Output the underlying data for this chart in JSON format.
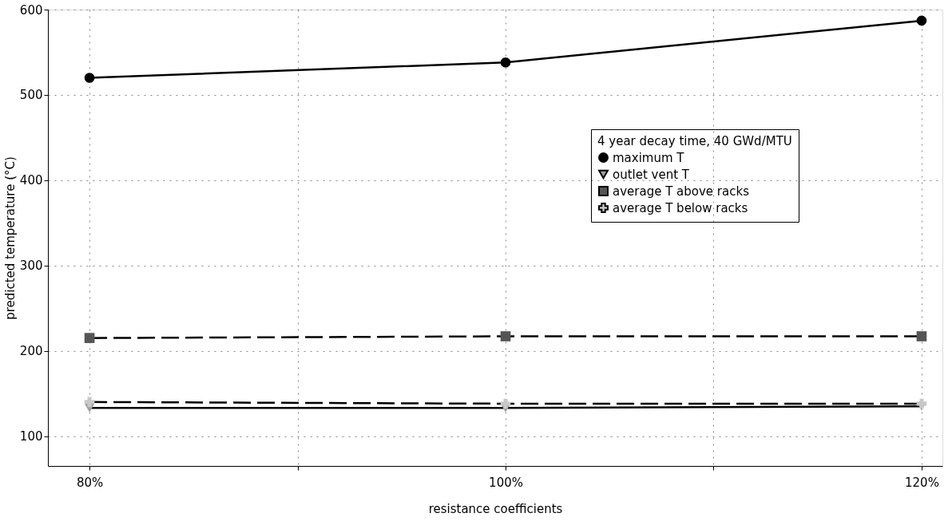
{
  "chart_data": {
    "type": "line",
    "xlabel": "resistance coefficients",
    "ylabel": "predicted temperature (°C)",
    "legend_title": "4 year decay time, 40 GWd/MTU",
    "x": [
      80,
      100,
      120
    ],
    "series": [
      {
        "name": "maximum T",
        "color": "#000000",
        "values": [
          520,
          538,
          587
        ],
        "marker": "circle",
        "line_style": "solid"
      },
      {
        "name": "outlet vent T",
        "color": "#a0a0a0",
        "values": [
          133,
          133,
          135
        ],
        "marker": "triangle",
        "line_style": "solid"
      },
      {
        "name": "average T above racks",
        "color": "#555555",
        "values": [
          215,
          217,
          217
        ],
        "marker": "square",
        "line_style": "dashed"
      },
      {
        "name": "average T below racks",
        "color": "#c8c8c8",
        "values": [
          140,
          138,
          138
        ],
        "marker": "cross",
        "line_style": "dashed"
      }
    ],
    "xlim": [
      78,
      121
    ],
    "xticks": [
      {
        "value": 80,
        "label": "80%"
      },
      {
        "value": 90,
        "label": null
      },
      {
        "value": 100,
        "label": "100%"
      },
      {
        "value": 110,
        "label": null
      },
      {
        "value": 120,
        "label": "120%"
      }
    ],
    "ylim": [
      65,
      600
    ],
    "yticks": [
      100,
      200,
      300,
      400,
      500,
      600
    ],
    "grid": true,
    "legend": "right"
  }
}
